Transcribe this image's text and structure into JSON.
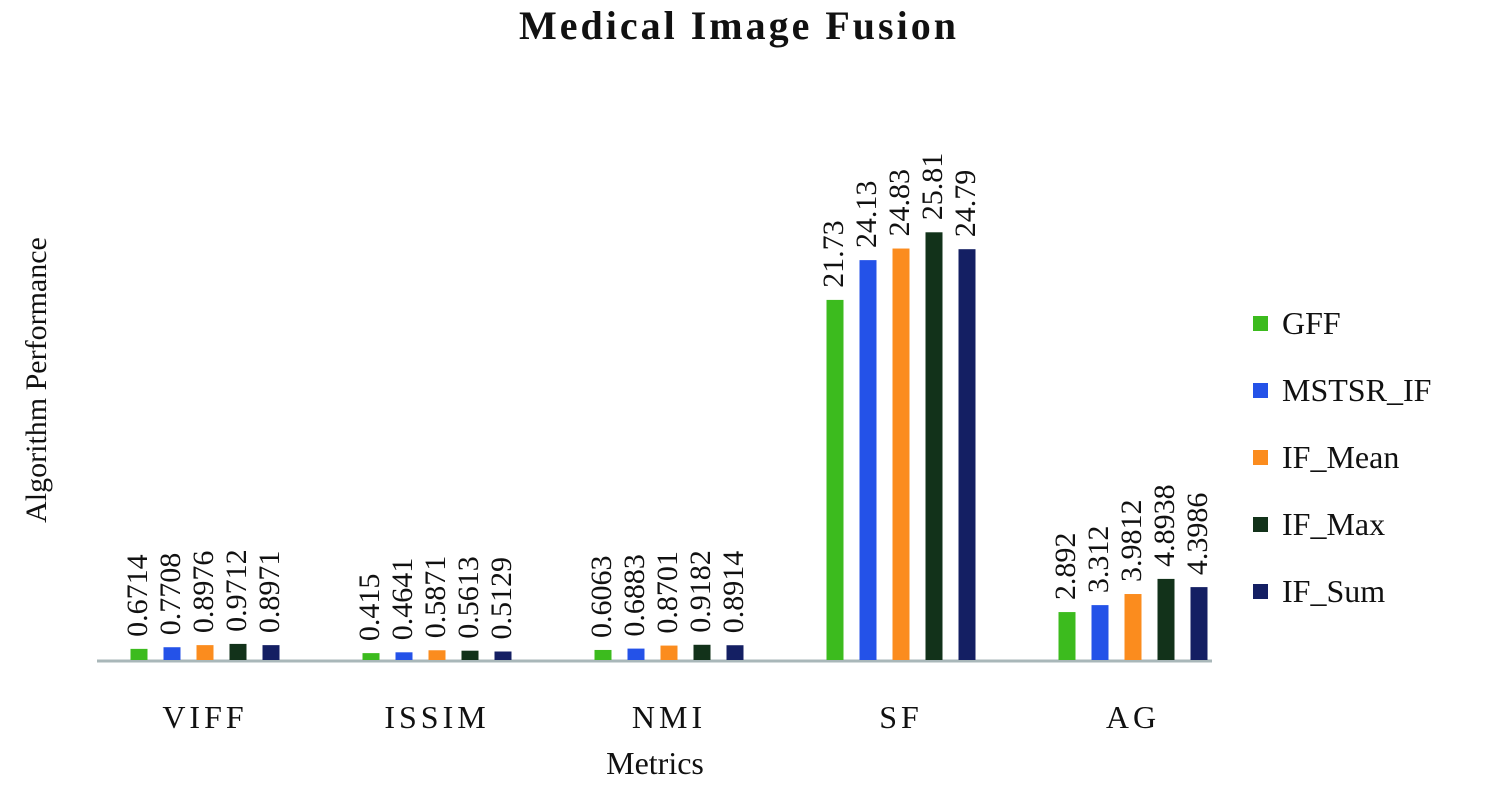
{
  "chart_data": {
    "type": "bar",
    "title": "Medical Image Fusion",
    "xlabel": "Metrics",
    "ylabel": "Algorithm Performance",
    "categories": [
      "VIFF",
      "ISSIM",
      "NMI",
      "SF",
      "AG"
    ],
    "series": [
      {
        "name": "GFF",
        "color": "#3cbb1e",
        "values": [
          0.6714,
          0.415,
          0.6063,
          21.73,
          2.892
        ],
        "labels": [
          "0.6714",
          "0.415",
          "0.6063",
          "21.73",
          "2.892"
        ]
      },
      {
        "name": "MSTSR_IF",
        "color": "#2452e8",
        "values": [
          0.7708,
          0.4641,
          0.6883,
          24.13,
          3.312
        ],
        "labels": [
          "0.7708",
          "0.4641",
          "0.6883",
          "24.13",
          "3.312"
        ]
      },
      {
        "name": "IF_Mean",
        "color": "#fb8c1e",
        "values": [
          0.8976,
          0.5871,
          0.8701,
          24.83,
          3.9812
        ],
        "labels": [
          "0.8976",
          "0.5871",
          "0.8701",
          "24.83",
          "3.9812"
        ]
      },
      {
        "name": "IF_Max",
        "color": "#12321a",
        "values": [
          0.9712,
          0.5613,
          0.9182,
          25.81,
          4.8938
        ],
        "labels": [
          "0.9712",
          "0.5613",
          "0.9182",
          "25.81",
          "4.8938"
        ]
      },
      {
        "name": "IF_Sum",
        "color": "#141f63",
        "values": [
          0.8971,
          0.5129,
          0.8914,
          24.79,
          4.3986
        ],
        "labels": [
          "0.8971",
          "0.5129",
          "0.8914",
          "24.79",
          "4.3986"
        ]
      }
    ],
    "ylim": [
      0,
      35
    ],
    "grid": false,
    "legend": "right"
  }
}
